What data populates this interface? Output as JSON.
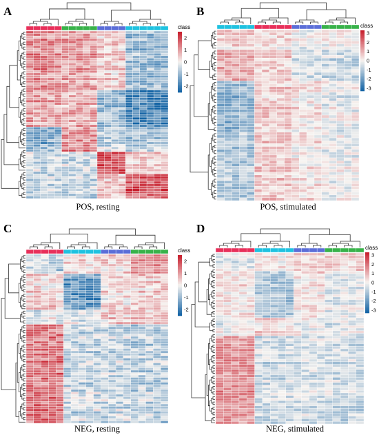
{
  "figure": {
    "legend_title": "class",
    "class_colors": [
      "#e8305a",
      "#1fc2e0",
      "#5b6ed8",
      "#38b24a"
    ],
    "colorscale": {
      "low": "#1464a5",
      "mid": "#f6f3f0",
      "high": "#c8202e"
    }
  },
  "chart_data": [
    {
      "type": "heatmap",
      "panel": "A",
      "caption": "POS, resting",
      "rows": 68,
      "class_groups": [
        {
          "color_index": 0,
          "samples": 5
        },
        {
          "color_index": 3,
          "samples": 5
        },
        {
          "color_index": 2,
          "samples": 4
        },
        {
          "color_index": 1,
          "samples": 6
        }
      ],
      "legend_ticks": [
        2,
        1,
        0,
        -1,
        -2
      ],
      "value_range": [
        -2.5,
        2.5
      ],
      "blocks": [
        {
          "rows": [
            0,
            0.35
          ],
          "values": [
            1.2,
            1.0,
            0.5,
            -1.0
          ]
        },
        {
          "rows": [
            0.35,
            0.58
          ],
          "values": [
            0.9,
            0.8,
            -1.0,
            -2.0
          ]
        },
        {
          "rows": [
            0.58,
            0.72
          ],
          "values": [
            -1.2,
            1.2,
            -0.6,
            -0.9
          ]
        },
        {
          "rows": [
            0.72,
            0.85
          ],
          "values": [
            -0.5,
            -0.5,
            2.0,
            0.4
          ]
        },
        {
          "rows": [
            0.85,
            1.0
          ],
          "values": [
            -0.6,
            -0.6,
            0.6,
            1.8
          ]
        }
      ]
    },
    {
      "type": "heatmap",
      "panel": "B",
      "caption": "POS, stimulated",
      "rows": 60,
      "class_groups": [
        {
          "color_index": 1,
          "samples": 5
        },
        {
          "color_index": 0,
          "samples": 5
        },
        {
          "color_index": 2,
          "samples": 4
        },
        {
          "color_index": 3,
          "samples": 5
        }
      ],
      "legend_ticks": [
        3,
        2,
        1,
        0,
        -1,
        -2,
        -3
      ],
      "value_range": [
        -3.3,
        3.3
      ],
      "blocks": [
        {
          "rows": [
            0,
            0.12
          ],
          "values": [
            0.5,
            0.3,
            -0.2,
            -0.1
          ]
        },
        {
          "rows": [
            0.12,
            0.3
          ],
          "values": [
            1.2,
            0.6,
            -0.4,
            -0.6
          ]
        },
        {
          "rows": [
            0.3,
            0.6
          ],
          "values": [
            -1.4,
            0.6,
            0.2,
            -0.2
          ]
        },
        {
          "rows": [
            0.6,
            1.0
          ],
          "values": [
            -1.0,
            0.7,
            0.3,
            -0.1
          ]
        }
      ]
    },
    {
      "type": "heatmap",
      "panel": "C",
      "caption": "NEG, resting",
      "rows": 70,
      "class_groups": [
        {
          "color_index": 0,
          "samples": 5
        },
        {
          "color_index": 1,
          "samples": 5
        },
        {
          "color_index": 2,
          "samples": 4
        },
        {
          "color_index": 3,
          "samples": 5
        }
      ],
      "legend_ticks": [
        2,
        1,
        0,
        -1,
        -2
      ],
      "value_range": [
        -2.5,
        2.5
      ],
      "blocks": [
        {
          "rows": [
            0,
            0.12
          ],
          "values": [
            -0.6,
            0.2,
            0.4,
            1.0
          ]
        },
        {
          "rows": [
            0.12,
            0.33
          ],
          "values": [
            0.4,
            -1.6,
            0.3,
            0.5
          ]
        },
        {
          "rows": [
            0.33,
            0.42
          ],
          "values": [
            -0.3,
            -0.2,
            0.5,
            0.5
          ]
        },
        {
          "rows": [
            0.42,
            1.0
          ],
          "values": [
            1.5,
            -0.5,
            -0.5,
            -0.6
          ]
        }
      ]
    },
    {
      "type": "heatmap",
      "panel": "D",
      "caption": "NEG, stimulated",
      "rows": 66,
      "class_groups": [
        {
          "color_index": 0,
          "samples": 5
        },
        {
          "color_index": 1,
          "samples": 5
        },
        {
          "color_index": 2,
          "samples": 4
        },
        {
          "color_index": 3,
          "samples": 5
        }
      ],
      "legend_ticks": [
        3,
        2,
        1,
        0,
        -1,
        -2,
        -3
      ],
      "value_range": [
        -3.3,
        3.3
      ],
      "blocks": [
        {
          "rows": [
            0,
            0.1
          ],
          "values": [
            -0.4,
            0.0,
            0.5,
            0.4
          ]
        },
        {
          "rows": [
            0.1,
            0.38
          ],
          "values": [
            0.3,
            -1.0,
            0.3,
            -0.2
          ]
        },
        {
          "rows": [
            0.38,
            0.48
          ],
          "values": [
            -0.2,
            0.3,
            -0.2,
            -0.4
          ]
        },
        {
          "rows": [
            0.48,
            1.0
          ],
          "values": [
            1.5,
            -0.6,
            -0.5,
            -0.6
          ]
        }
      ]
    }
  ]
}
